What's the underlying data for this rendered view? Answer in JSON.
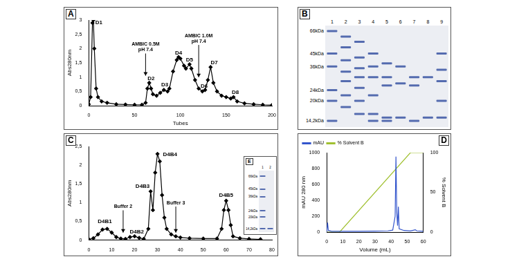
{
  "chart_data": [
    {
      "panel": "A",
      "type": "line",
      "x_label": "Tubes",
      "y_label": "Abs280nm",
      "xlim": [
        0,
        200
      ],
      "xticks": [
        0,
        50,
        100,
        150,
        200
      ],
      "ylim": [
        0,
        3
      ],
      "yticks": [
        0,
        {
          "value": 0.5,
          "label": "0,5"
        },
        1,
        {
          "value": 1.5,
          "label": "1,5"
        },
        2,
        {
          "value": 2.5,
          "label": "2,5"
        },
        3
      ],
      "grid": false,
      "marker": "diamond",
      "color": "#000000",
      "series": [
        {
          "x": [
            0,
            2,
            4,
            5,
            6,
            8,
            10,
            14,
            20,
            30,
            40,
            50,
            58,
            62,
            64,
            66,
            68,
            70,
            74,
            78,
            82,
            86,
            88,
            92,
            96,
            98,
            100,
            104,
            106,
            110,
            112,
            116,
            120,
            124,
            127,
            130,
            133,
            136,
            140,
            145,
            150,
            155,
            158,
            162,
            170,
            180,
            190,
            200
          ],
          "values": [
            0.05,
            0.3,
            2.9,
            3.0,
            2.0,
            0.6,
            0.3,
            0.15,
            0.1,
            0.05,
            0.04,
            0.03,
            0.03,
            0.1,
            0.6,
            0.8,
            0.6,
            0.4,
            0.35,
            0.45,
            0.55,
            0.5,
            0.6,
            1.2,
            1.6,
            1.7,
            1.65,
            1.4,
            1.3,
            1.45,
            1.3,
            0.9,
            0.6,
            0.5,
            0.55,
            0.9,
            1.35,
            0.8,
            0.5,
            0.35,
            0.3,
            0.25,
            0.3,
            0.15,
            0.08,
            0.05,
            0.03,
            0.02
          ]
        }
      ],
      "peak_labels": [
        {
          "text": "D1",
          "x": 11,
          "y": 2.85
        },
        {
          "text": "D2",
          "x": 68,
          "y": 0.9
        },
        {
          "text": "D3",
          "x": 83,
          "y": 0.68
        },
        {
          "text": "D4",
          "x": 98,
          "y": 1.8
        },
        {
          "text": "D5",
          "x": 110,
          "y": 1.55
        },
        {
          "text": "D6",
          "x": 126,
          "y": 0.62
        },
        {
          "text": "D7",
          "x": 137,
          "y": 1.45
        },
        {
          "text": "D8",
          "x": 160,
          "y": 0.4
        }
      ],
      "annotations": [
        {
          "text": [
            "AMBIC 0.5M",
            "pH 7.4"
          ],
          "x": 62,
          "y": 1.9,
          "arrow_to": 1.05
        },
        {
          "text": [
            "AMBIC 1.0M",
            "pH 7.4"
          ],
          "x": 120,
          "y": 2.2,
          "arrow_to": 1.0
        }
      ]
    },
    {
      "panel": "C",
      "type": "line",
      "y_label": "Abs280nm",
      "xlim": [
        0,
        80
      ],
      "xticks": [
        0,
        10,
        20,
        30,
        40,
        50,
        60,
        70,
        80
      ],
      "ylim": [
        0,
        2.5
      ],
      "yticks": [
        0,
        {
          "value": 0.5,
          "label": "0,5"
        },
        1,
        {
          "value": 1.5,
          "label": "1,5"
        },
        2,
        {
          "value": 2.5,
          "label": "2,5"
        }
      ],
      "grid": false,
      "marker": "diamond",
      "color": "#000000",
      "series": [
        {
          "x": [
            0,
            2,
            4,
            6,
            8,
            10,
            12,
            14,
            16,
            18,
            20,
            22,
            24,
            26,
            27,
            28,
            29,
            30,
            31,
            32,
            33,
            34,
            36,
            38,
            40,
            44,
            50,
            56,
            58,
            59,
            60,
            61,
            62,
            63,
            66,
            70,
            75
          ],
          "values": [
            0.02,
            0.05,
            0.15,
            0.28,
            0.3,
            0.2,
            0.08,
            0.04,
            0.03,
            0.08,
            0.1,
            0.06,
            0.03,
            0.3,
            1.3,
            0.8,
            1.8,
            2.3,
            2.1,
            1.2,
            0.6,
            0.3,
            0.15,
            0.1,
            0.07,
            0.05,
            0.04,
            0.04,
            0.3,
            0.8,
            1.05,
            0.8,
            0.4,
            0.1,
            0.05,
            0.03,
            0.02
          ]
        }
      ],
      "peak_labels": [
        {
          "text": "D4B1",
          "x": 7,
          "y": 0.45
        },
        {
          "text": "D4B2",
          "x": 21,
          "y": 0.18
        },
        {
          "text": "D4B3",
          "x": 23.5,
          "y": 1.4
        },
        {
          "text": "D4B4",
          "x": 35.5,
          "y": 2.25
        },
        {
          "text": "D4B5",
          "x": 60,
          "y": 1.15
        }
      ],
      "annotations": [
        {
          "text": [
            "Buffer 2"
          ],
          "x": 15,
          "y": 0.85,
          "arrow_to": 0.2
        },
        {
          "text": [
            "Buffer 3"
          ],
          "x": 38,
          "y": 0.95,
          "arrow_to": 0.2
        }
      ]
    },
    {
      "panel": "D",
      "type": "line",
      "x_label": "Volume (mL)",
      "y_label": "mAU 280 nm",
      "y2_label": "% Solvent B",
      "xlim": [
        0,
        60
      ],
      "xticks": [
        0,
        10,
        20,
        30,
        40,
        50,
        60
      ],
      "ylim": [
        0,
        1000
      ],
      "yticks": [
        0,
        200,
        400,
        600,
        800,
        1000
      ],
      "y2lim": [
        0,
        100
      ],
      "y2ticks": [
        0,
        50,
        100
      ],
      "grid": false,
      "legend": "upper left",
      "series": [
        {
          "name": "mAU",
          "color": "#3355cc",
          "x": [
            0,
            0.5,
            1,
            3,
            10,
            20,
            30,
            38,
            41,
            42.5,
            43,
            43.5,
            44,
            44.5,
            45,
            48,
            52,
            55,
            56,
            60
          ],
          "values": [
            0,
            120,
            20,
            10,
            10,
            10,
            12,
            15,
            25,
            200,
            950,
            250,
            80,
            320,
            40,
            20,
            15,
            30,
            15,
            10
          ]
        },
        {
          "name": "% Solvent B",
          "color": "#a0c030",
          "axis": "y2",
          "x": [
            0,
            8,
            52,
            60
          ],
          "values": [
            0,
            0,
            100,
            100
          ]
        }
      ]
    }
  ],
  "gels": [
    {
      "panel": "B",
      "color": "#2e4a9e",
      "marker_labels": [
        {
          "value": 66,
          "label": "66kDa"
        },
        {
          "value": 45,
          "label": "45kDa"
        },
        {
          "value": 36,
          "label": "36kDa"
        },
        {
          "value": 24,
          "label": "24kDa"
        },
        {
          "value": 20,
          "label": "20kDa"
        },
        {
          "value": 14.2,
          "label": "14,2kDa"
        }
      ],
      "lanes": [
        {
          "label": "1",
          "bands": [
            66,
            45,
            36,
            24,
            20,
            14.2
          ]
        },
        {
          "label": "2",
          "bands": [
            60,
            50,
            40,
            33,
            28,
            22,
            18
          ]
        },
        {
          "label": "3",
          "bands": [
            55,
            42,
            35,
            30,
            25,
            20,
            16
          ]
        },
        {
          "label": "4",
          "bands": [
            45,
            36,
            30,
            22,
            16,
            14.2
          ]
        },
        {
          "label": "5",
          "bands": [
            38,
            30,
            26,
            15,
            14.2
          ]
        },
        {
          "label": "6",
          "bands": [
            36,
            27,
            15
          ]
        },
        {
          "label": "7",
          "bands": [
            30,
            26,
            14.2
          ]
        },
        {
          "label": "8",
          "bands": [
            30,
            15
          ]
        },
        {
          "label": "9",
          "bands": [
            45,
            34,
            28,
            20,
            15
          ]
        }
      ]
    },
    {
      "panel": "E",
      "color": "#2e4a9e",
      "marker_labels": [
        {
          "value": 66,
          "label": "66kDa"
        },
        {
          "value": 45,
          "label": "45kDa"
        },
        {
          "value": 36,
          "label": "36kDa"
        },
        {
          "value": 24,
          "label": "24kDa"
        },
        {
          "value": 20,
          "label": "20kDa"
        },
        {
          "value": 14.2,
          "label": "14,2kDa"
        }
      ],
      "lanes": [
        {
          "label": "1",
          "bands": [
            66,
            45,
            36,
            24,
            20,
            14.2
          ]
        },
        {
          "label": "2",
          "bands": [
            14.2
          ]
        }
      ]
    }
  ]
}
